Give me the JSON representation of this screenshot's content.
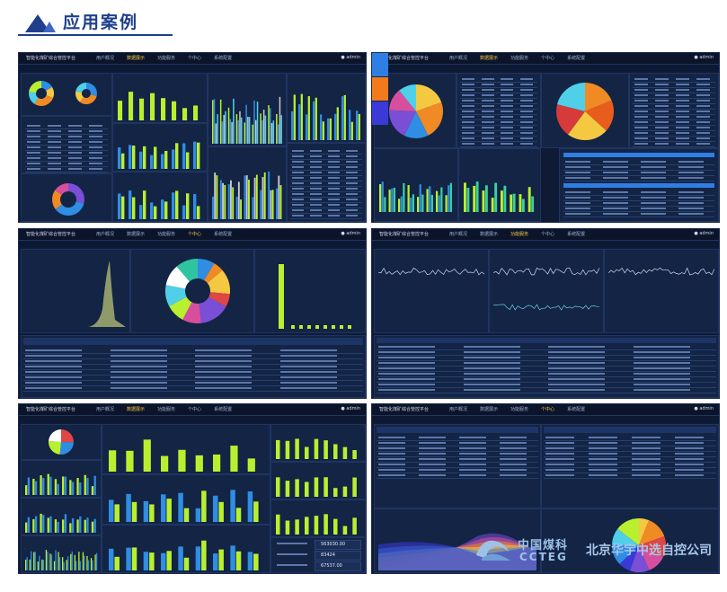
{
  "heading": {
    "title": "应用案例"
  },
  "screens": [
    {
      "platform_title": "智能化煤矿综合管控平台",
      "menu": [
        "用户概况",
        "数据展示",
        "功能服务",
        "个中心",
        "系统配置"
      ],
      "active_menu": 1,
      "user": "admin"
    },
    {
      "platform_title": "智能化煤矿综合管控平台",
      "menu": [
        "用户概况",
        "数据展示",
        "功能服务",
        "个中心",
        "系统配置"
      ],
      "active_menu": 1,
      "user": "admin"
    },
    {
      "platform_title": "智能化煤矿综合管控平台",
      "menu": [
        "用户概况",
        "数据展示",
        "功能服务",
        "个中心",
        "系统配置"
      ],
      "active_menu": 3,
      "user": "admin"
    },
    {
      "platform_title": "智能化煤矿综合管控平台",
      "menu": [
        "用户概况",
        "数据展示",
        "功能服务",
        "个中心",
        "系统配置"
      ],
      "active_menu": 2,
      "user": "admin"
    },
    {
      "platform_title": "智能化煤矿综合管控平台",
      "menu": [
        "用户概况",
        "数据展示",
        "功能服务",
        "个中心",
        "系统配置"
      ],
      "active_menu": 1,
      "user": "admin"
    },
    {
      "platform_title": "智能化煤矿综合管控平台",
      "menu": [
        "用户概况",
        "数据展示",
        "功能服务",
        "个中心",
        "系统配置"
      ],
      "active_menu": 3,
      "user": "admin"
    }
  ],
  "stat_values": [
    "563030.00",
    "83424",
    "67537.00"
  ],
  "logo": {
    "cn": "中国煤科",
    "en": "CCTEG",
    "company": "北京华宇中选自控公司"
  },
  "colors": {
    "primary": "#1f3f8c",
    "dashboard_bg": "#0f1b35",
    "accent_green": "#b8f02f",
    "accent_blue": "#2f8de4",
    "logo": "#9ec1e8"
  }
}
